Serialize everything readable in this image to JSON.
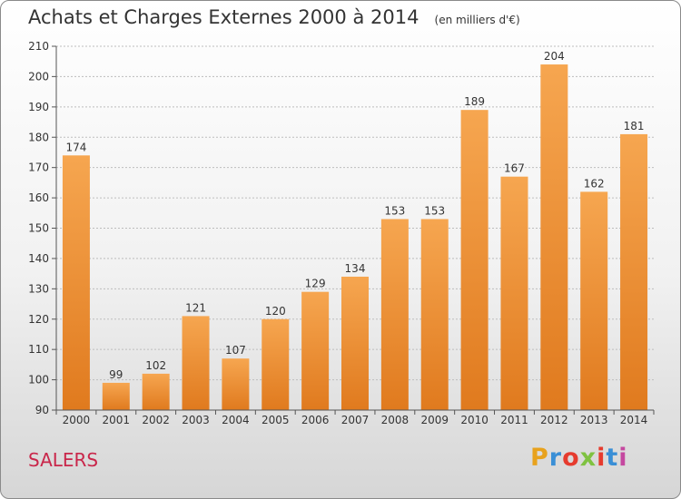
{
  "title": "Achats et Charges Externes 2000 à 2014",
  "unit_note": "(en milliers d'€)",
  "commune": "SALERS",
  "logo_text": "Proxiti",
  "colors": {
    "bar_top": "#f6a650",
    "bar_bottom": "#e07a1e",
    "commune": "#c9264a"
  },
  "chart_data": {
    "type": "bar",
    "title": "Achats et Charges Externes 2000 à 2014",
    "subtitle": "(en milliers d'€)",
    "categories": [
      "2000",
      "2001",
      "2002",
      "2003",
      "2004",
      "2005",
      "2006",
      "2007",
      "2008",
      "2009",
      "2010",
      "2011",
      "2012",
      "2013",
      "2014"
    ],
    "values": [
      174,
      99,
      102,
      121,
      107,
      120,
      129,
      134,
      153,
      153,
      189,
      167,
      204,
      162,
      181
    ],
    "ylim": [
      90,
      210
    ],
    "yticks": [
      90,
      100,
      110,
      120,
      130,
      140,
      150,
      160,
      170,
      180,
      190,
      200,
      210
    ],
    "grid": true,
    "data_labels": true
  }
}
